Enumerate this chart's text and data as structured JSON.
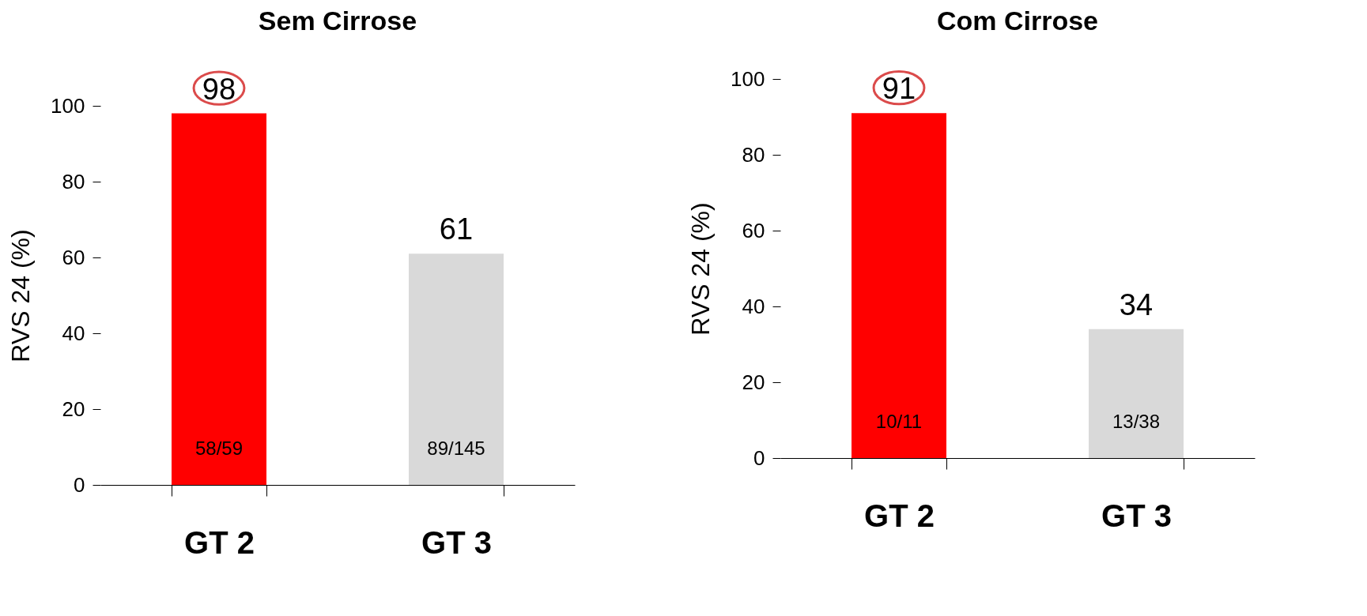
{
  "chart_data": [
    {
      "type": "bar",
      "title": "Sem Cirrose",
      "ylabel": "RVS 24 (%)",
      "categories": [
        "GT 2",
        "GT 3"
      ],
      "values": [
        98,
        61
      ],
      "colors": [
        "#ff0000",
        "#d9d9d9"
      ],
      "ylim": [
        0,
        100
      ],
      "yticks": [
        0,
        20,
        40,
        60,
        80,
        100
      ],
      "grid": false,
      "data_labels": true,
      "annotations": [
        "58/59",
        "89/145"
      ]
    },
    {
      "type": "bar",
      "title": "Com Cirrose",
      "ylabel": "RVS 24 (%)",
      "categories": [
        "GT 2",
        "GT 3"
      ],
      "values": [
        91,
        34
      ],
      "colors": [
        "#ff0000",
        "#d9d9d9"
      ],
      "ylim": [
        0,
        100
      ],
      "yticks": [
        0,
        20,
        40,
        60,
        80,
        100
      ],
      "grid": false,
      "data_labels": true,
      "annotations": [
        "10/11",
        "13/38"
      ]
    }
  ]
}
